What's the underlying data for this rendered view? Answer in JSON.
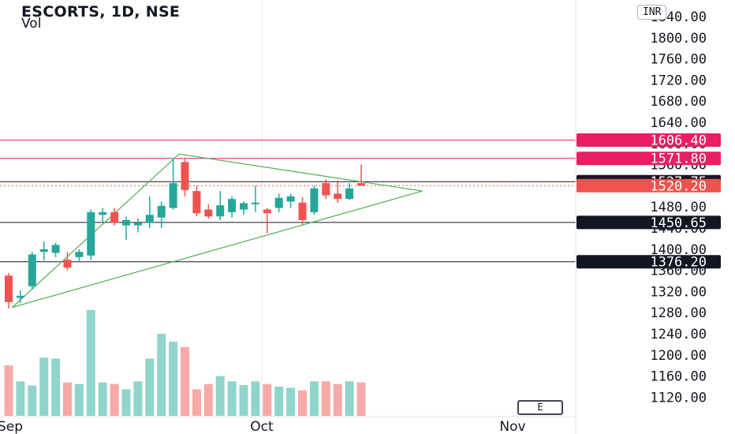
{
  "header": {
    "title": "ESCORTS, 1D, NSE",
    "volume_label": "Vol",
    "currency": "INR"
  },
  "controls": {
    "scale_button": "E"
  },
  "chart_data": {
    "type": "candlestick",
    "symbol": "ESCORTS",
    "interval": "1D",
    "exchange": "NSE",
    "price_axis": {
      "ticks": [
        1840,
        1800,
        1760,
        1720,
        1680,
        1640,
        1600,
        1560,
        1520,
        1480,
        1440,
        1400,
        1360,
        1320,
        1280,
        1240,
        1200,
        1160,
        1120
      ],
      "tick_labels": [
        "1840.00",
        "1800.00",
        "1760.00",
        "1720.00",
        "1680.00",
        "1640.00",
        "1600.00",
        "1560.00",
        "1520.00",
        "1480.00",
        "1440.00",
        "1400.00",
        "1360.00",
        "1320.00",
        "1280.00",
        "1240.00",
        "1200.00",
        "1160.00",
        "1120.00"
      ]
    },
    "time_axis": {
      "labels": [
        "Sep",
        "Oct",
        "Nov"
      ]
    },
    "price_badges": [
      {
        "label": "1606.40",
        "value": 1606.4,
        "color": "#e91e63"
      },
      {
        "label": "1571.80",
        "value": 1571.8,
        "color": "#e91e63"
      },
      {
        "label": "1527.75",
        "value": 1527.75,
        "color": "#131722"
      },
      {
        "label": "1520.20",
        "value": 1520.2,
        "color": "#ef5350"
      },
      {
        "label": "1450.65",
        "value": 1450.65,
        "color": "#131722"
      },
      {
        "label": "1376.20",
        "value": 1376.2,
        "color": "#131722"
      }
    ],
    "horizontal_lines": [
      {
        "value": 1606.4,
        "color": "#e91e63"
      },
      {
        "value": 1571.8,
        "color": "#e91e63"
      },
      {
        "value": 1527.75,
        "color": "#131722"
      },
      {
        "value": 1450.65,
        "color": "#131722"
      },
      {
        "value": 1376.2,
        "color": "#131722"
      }
    ],
    "last_price_line": {
      "value": 1520.2,
      "color": "#ef5350"
    },
    "triangle_pattern": {
      "color": "#4caf50",
      "points": [
        {
          "bar": 14.5,
          "price": 1580
        },
        {
          "bar": 35.2,
          "price": 1510
        },
        {
          "bar": 0.3,
          "price": 1290
        }
      ]
    },
    "candles": [
      {
        "o": 1350,
        "h": 1355,
        "l": 1288,
        "c": 1300
      },
      {
        "o": 1308,
        "h": 1322,
        "l": 1298,
        "c": 1312
      },
      {
        "o": 1330,
        "h": 1395,
        "l": 1325,
        "c": 1390
      },
      {
        "o": 1395,
        "h": 1415,
        "l": 1378,
        "c": 1400
      },
      {
        "o": 1393,
        "h": 1412,
        "l": 1385,
        "c": 1408
      },
      {
        "o": 1380,
        "h": 1395,
        "l": 1360,
        "c": 1365
      },
      {
        "o": 1385,
        "h": 1400,
        "l": 1378,
        "c": 1395
      },
      {
        "o": 1388,
        "h": 1475,
        "l": 1380,
        "c": 1470
      },
      {
        "o": 1465,
        "h": 1478,
        "l": 1452,
        "c": 1470
      },
      {
        "o": 1470,
        "h": 1478,
        "l": 1445,
        "c": 1450
      },
      {
        "o": 1445,
        "h": 1462,
        "l": 1418,
        "c": 1455
      },
      {
        "o": 1445,
        "h": 1458,
        "l": 1432,
        "c": 1450
      },
      {
        "o": 1450,
        "h": 1500,
        "l": 1440,
        "c": 1465
      },
      {
        "o": 1460,
        "h": 1490,
        "l": 1440,
        "c": 1482
      },
      {
        "o": 1478,
        "h": 1572,
        "l": 1475,
        "c": 1525
      },
      {
        "o": 1565,
        "h": 1572,
        "l": 1500,
        "c": 1512
      },
      {
        "o": 1510,
        "h": 1520,
        "l": 1462,
        "c": 1468
      },
      {
        "o": 1475,
        "h": 1485,
        "l": 1458,
        "c": 1462
      },
      {
        "o": 1462,
        "h": 1510,
        "l": 1455,
        "c": 1483
      },
      {
        "o": 1470,
        "h": 1500,
        "l": 1460,
        "c": 1495
      },
      {
        "o": 1475,
        "h": 1490,
        "l": 1465,
        "c": 1487
      },
      {
        "o": 1485,
        "h": 1520,
        "l": 1470,
        "c": 1488
      },
      {
        "o": 1475,
        "h": 1478,
        "l": 1430,
        "c": 1468
      },
      {
        "o": 1478,
        "h": 1505,
        "l": 1470,
        "c": 1497
      },
      {
        "o": 1490,
        "h": 1505,
        "l": 1478,
        "c": 1500
      },
      {
        "o": 1488,
        "h": 1498,
        "l": 1445,
        "c": 1455
      },
      {
        "o": 1470,
        "h": 1520,
        "l": 1465,
        "c": 1515
      },
      {
        "o": 1525,
        "h": 1532,
        "l": 1495,
        "c": 1502
      },
      {
        "o": 1505,
        "h": 1530,
        "l": 1488,
        "c": 1495
      },
      {
        "o": 1495,
        "h": 1525,
        "l": 1493,
        "c": 1515
      },
      {
        "o": 1525,
        "h": 1560,
        "l": 1522,
        "c": 1520
      }
    ],
    "volumes": [
      1180,
      1150,
      1142,
      1195,
      1193,
      1148,
      1145,
      1285,
      1148,
      1145,
      1135,
      1150,
      1193,
      1240,
      1225,
      1215,
      1135,
      1145,
      1160,
      1150,
      1143,
      1150,
      1145,
      1140,
      1138,
      1133,
      1150,
      1150,
      1145,
      1150,
      1148
    ]
  }
}
